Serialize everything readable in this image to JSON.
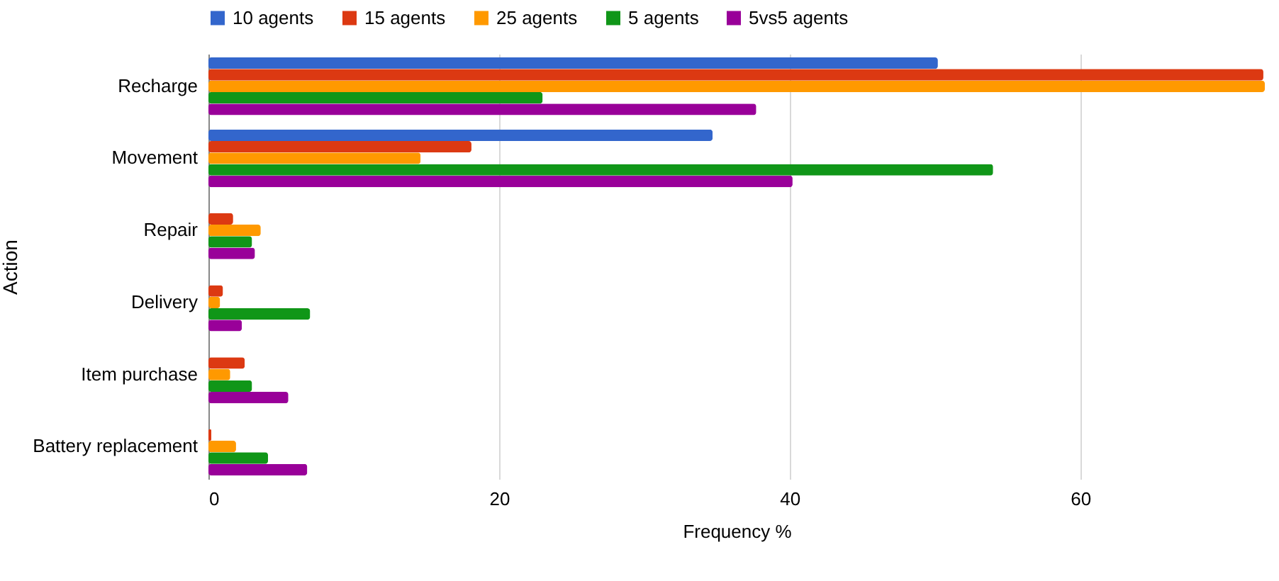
{
  "chart_data": {
    "type": "bar",
    "orientation": "horizontal",
    "xlabel": "Frequency %",
    "ylabel": "Action",
    "categories": [
      "Recharge",
      "Movement",
      "Repair",
      "Delivery",
      "Item purchase",
      "Battery replacement"
    ],
    "series": [
      {
        "name": "10 agents",
        "color": "#3366cc",
        "values": [
          50.2,
          34.7,
          null,
          null,
          null,
          null
        ]
      },
      {
        "name": "15 agents",
        "color": "#dc3912",
        "values": [
          72.6,
          18.1,
          1.7,
          1.0,
          2.5,
          0.2
        ]
      },
      {
        "name": "25 agents",
        "color": "#ff9900",
        "values": [
          72.7,
          14.6,
          3.6,
          0.8,
          1.5,
          1.9
        ]
      },
      {
        "name": "5 agents",
        "color": "#109618",
        "values": [
          23.0,
          54.0,
          3.0,
          7.0,
          3.0,
          4.1
        ]
      },
      {
        "name": "5vs5 agents",
        "color": "#990099",
        "values": [
          37.7,
          40.2,
          3.2,
          2.3,
          5.5,
          6.8
        ]
      }
    ],
    "xlim": [
      0,
      72.7
    ],
    "xticks": [
      0,
      20,
      40,
      60
    ],
    "grid": "x",
    "legend": "top"
  }
}
